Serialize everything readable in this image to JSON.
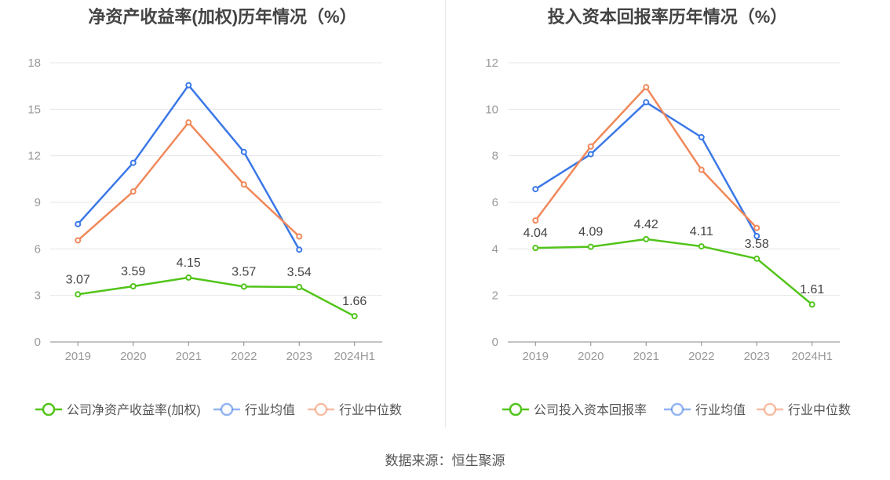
{
  "colors": {
    "company": "#52c41a",
    "industry_avg": "#3b78e7",
    "industry_median": "#f0885a",
    "grid": "#e6e6ec",
    "axis": "#999999"
  },
  "source_text": "数据来源：恒生聚源",
  "chart_data": [
    {
      "type": "line",
      "title": "净资产收益率(加权)历年情况（%）",
      "categories": [
        "2019",
        "2020",
        "2021",
        "2022",
        "2023",
        "2024H1"
      ],
      "ylim": [
        0,
        18
      ],
      "yticks": [
        0,
        3,
        6,
        9,
        12,
        15,
        18
      ],
      "grid": true,
      "legend_position": "bottom",
      "series": [
        {
          "name": "公司净资产收益率(加权)",
          "key": "company",
          "values": [
            3.07,
            3.59,
            4.15,
            3.57,
            3.54,
            1.66
          ],
          "labels": [
            "3.07",
            "3.59",
            "4.15",
            "3.57",
            "3.54",
            "1.66"
          ]
        },
        {
          "name": "行业均值",
          "key": "industry_avg",
          "values": [
            7.6,
            11.55,
            16.55,
            12.25,
            5.95,
            null
          ]
        },
        {
          "name": "行业中位数",
          "key": "industry_median",
          "values": [
            6.55,
            9.7,
            14.15,
            10.15,
            6.8,
            null
          ]
        }
      ]
    },
    {
      "type": "line",
      "title": "投入资本回报率历年情况（%）",
      "categories": [
        "2019",
        "2020",
        "2021",
        "2022",
        "2023",
        "2024H1"
      ],
      "ylim": [
        0,
        12
      ],
      "yticks": [
        0,
        2,
        4,
        6,
        8,
        10,
        12
      ],
      "grid": true,
      "legend_position": "bottom",
      "series": [
        {
          "name": "公司投入资本回报率",
          "key": "company",
          "values": [
            4.04,
            4.09,
            4.42,
            4.11,
            3.58,
            1.61
          ],
          "labels": [
            "4.04",
            "4.09",
            "4.42",
            "4.11",
            "3.58",
            "1.61"
          ]
        },
        {
          "name": "行业均值",
          "key": "industry_avg",
          "values": [
            6.57,
            8.07,
            10.3,
            8.8,
            4.55,
            null
          ]
        },
        {
          "name": "行业中位数",
          "key": "industry_median",
          "values": [
            5.22,
            8.4,
            10.95,
            7.4,
            4.9,
            null
          ]
        }
      ]
    }
  ]
}
